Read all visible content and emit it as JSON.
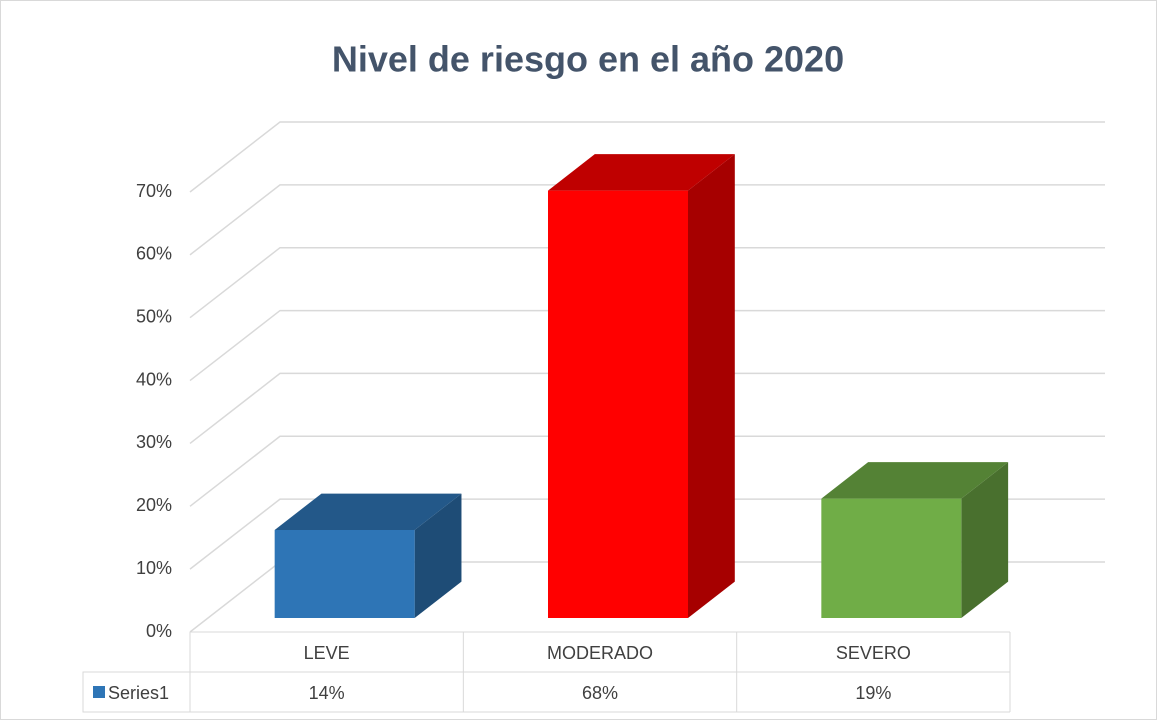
{
  "chart_data": {
    "type": "bar3d",
    "title": "Nivel de riesgo en el año 2020",
    "categories": [
      "LEVE",
      "MODERADO",
      "SEVERO"
    ],
    "series": [
      {
        "name": "Series1",
        "color": "#2e75b6",
        "point_colors": [
          "#2e75b6",
          "#ff0000",
          "#70ad47"
        ],
        "values": [
          14,
          68,
          19
        ],
        "value_labels": [
          "14%",
          "68%",
          "19%"
        ]
      }
    ],
    "ylim": [
      0,
      70
    ],
    "yticks": [
      {
        "value": 0,
        "label": "0%"
      },
      {
        "value": 10,
        "label": "10%"
      },
      {
        "value": 20,
        "label": "20%"
      },
      {
        "value": 30,
        "label": "30%"
      },
      {
        "value": 40,
        "label": "40%"
      },
      {
        "value": 50,
        "label": "50%"
      },
      {
        "value": 60,
        "label": "60%"
      },
      {
        "value": 70,
        "label": "70%"
      }
    ],
    "grid": true,
    "data_table": true
  }
}
